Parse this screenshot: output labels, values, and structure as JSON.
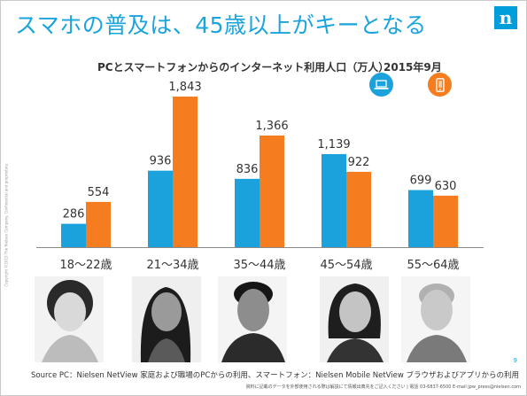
{
  "title": "スマホの普及は、45歳以上がキーとなる",
  "logo_letter": "n",
  "copyright": "Copyright ©2015 The Nielsen Company. Confidential and proprietary.",
  "source": "Source PC：Nielsen NetView 家庭および職場のPCからの利用、スマートフォン：Nielsen Mobile NetView ブラウザおよびアプリからの利用",
  "note": "資料に記載のデータを外部使用される際は解説にて情報出典先をご記入ください | 電話 03-6837-6500 E-mail jpw_press@nielsen.com",
  "page_number": "9",
  "icons": {
    "pc": "laptop-icon",
    "smartphone": "smartphone-icon"
  },
  "colors": {
    "title": "#1aa3dd",
    "pc": "#1ba1dc",
    "smartphone": "#f57c1f",
    "baseline": "#8a8a8a"
  },
  "chart_data": {
    "type": "bar",
    "title": "PCとスマートフォンからのインターネット利用人口（万人）",
    "period": "2015年9月",
    "categories": [
      "18～22歳",
      "21～34歳",
      "35～44歳",
      "45～54歳",
      "55～64歳"
    ],
    "series": [
      {
        "values": [
          286,
          936,
          836,
          1139,
          699
        ],
        "labels": [
          "286",
          "936",
          "836",
          "1,139",
          "699"
        ]
      },
      {
        "values": [
          554,
          1843,
          1366,
          922,
          630
        ],
        "labels": [
          "554",
          "1,843",
          "1,366",
          "922",
          "630"
        ]
      }
    ],
    "ylim": [
      0,
      1843
    ],
    "grid": false,
    "legend": "top-right"
  }
}
